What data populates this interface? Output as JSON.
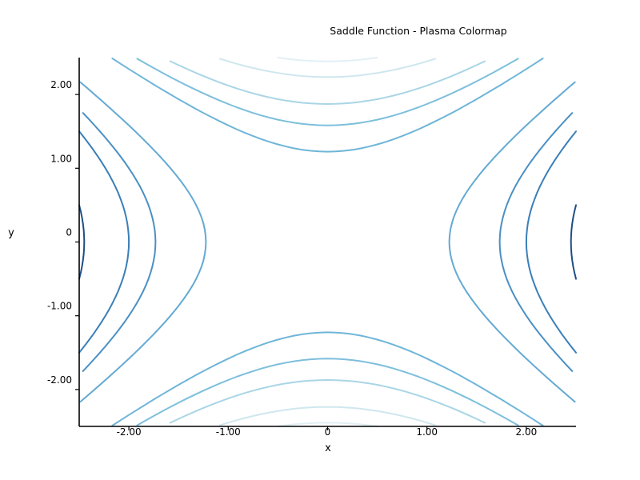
{
  "chart_data": {
    "type": "contour",
    "title": "Saddle Function - Plasma Colormap",
    "function": "z = x^2 - y^2",
    "xlabel": "x",
    "ylabel": "y",
    "xlim": [
      -2.5,
      2.5
    ],
    "ylim": [
      -2.5,
      2.5
    ],
    "x_ticks": [
      {
        "value": -2,
        "label": "-2.00"
      },
      {
        "value": -1,
        "label": "-1.00"
      },
      {
        "value": 0,
        "label": "0"
      },
      {
        "value": 1,
        "label": "1.00"
      },
      {
        "value": 2,
        "label": "2.00"
      }
    ],
    "y_ticks": [
      {
        "value": 2,
        "label": "2.00"
      },
      {
        "value": 1,
        "label": "1.00"
      },
      {
        "value": 0,
        "label": "0"
      },
      {
        "value": -1,
        "label": "-1.00"
      },
      {
        "value": -2,
        "label": "-2.00"
      }
    ],
    "grid": false,
    "levels": [
      {
        "value": 6,
        "color": "#1f4e85"
      },
      {
        "value": 4,
        "color": "#3a7fb8"
      },
      {
        "value": 3,
        "color": "#4a90c4"
      },
      {
        "value": 1.5,
        "color": "#63a9d3"
      },
      {
        "value": -1.5,
        "color": "#6fb5d8"
      },
      {
        "value": -2.5,
        "color": "#7dbfdc"
      },
      {
        "value": -3.5,
        "color": "#a9d5e6"
      },
      {
        "value": -5,
        "color": "#cfe7ef"
      },
      {
        "value": -6,
        "color": "#e2f0f5"
      }
    ]
  }
}
